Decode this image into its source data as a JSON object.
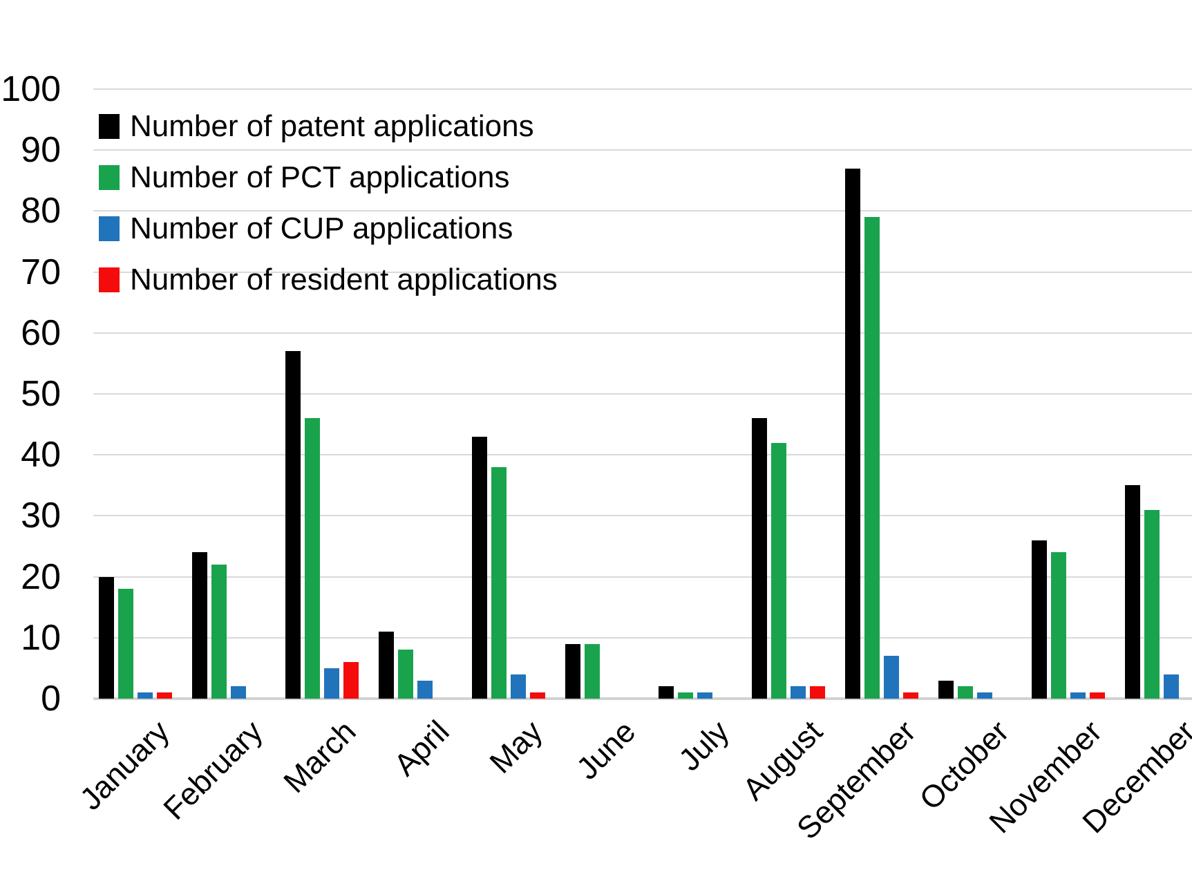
{
  "chart_data": {
    "type": "bar",
    "title": "",
    "categories": [
      "January",
      "February",
      "March",
      "April",
      "May",
      "June",
      "July",
      "August",
      "September",
      "October",
      "November",
      "December"
    ],
    "series": [
      {
        "name": "Number of patent applications",
        "color": "#000000",
        "values": [
          20,
          24,
          57,
          11,
          43,
          9,
          2,
          46,
          87,
          3,
          26,
          35
        ]
      },
      {
        "name": "Number of PCT applications",
        "color": "#1aa34d",
        "values": [
          18,
          22,
          46,
          8,
          38,
          9,
          1,
          42,
          79,
          2,
          24,
          31
        ]
      },
      {
        "name": "Number of CUP applications",
        "color": "#2173bb",
        "values": [
          1,
          2,
          5,
          3,
          4,
          0,
          1,
          2,
          7,
          1,
          1,
          4
        ]
      },
      {
        "name": "Number of resident applications",
        "color": "#f40b0b",
        "values": [
          1,
          0,
          6,
          0,
          1,
          0,
          0,
          2,
          1,
          0,
          1,
          0
        ]
      }
    ],
    "yticks": [
      0,
      10,
      20,
      30,
      40,
      50,
      60,
      70,
      80,
      90,
      100
    ],
    "ylim": [
      0,
      100
    ],
    "xlabel": "",
    "ylabel": "",
    "grid": "horizontal-only",
    "legend_position": "top-left-inside",
    "x_label_rotation": -45
  },
  "colors": {
    "background": "#ffffff",
    "gridline": "#d9d9d9",
    "axis_line": "#d2d2d2"
  }
}
